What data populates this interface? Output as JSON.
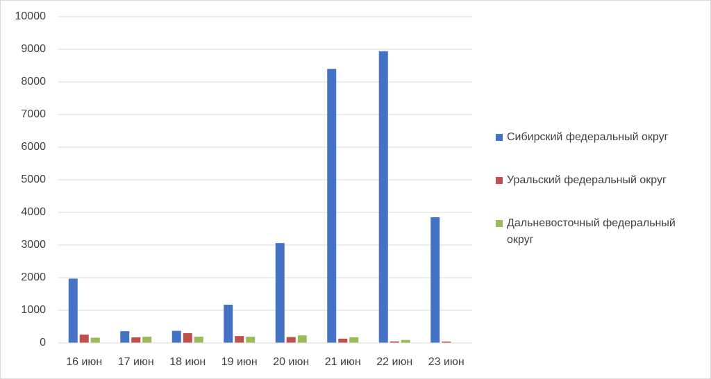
{
  "chart_data": {
    "type": "bar",
    "categories": [
      "16 июн",
      "17 июн",
      "18 июн",
      "19 июн",
      "20 июн",
      "21 июн",
      "22 июн",
      "23 июн"
    ],
    "series": [
      {
        "name": "Сибирский федеральный округ",
        "color": "#4472c4",
        "values": [
          1970,
          360,
          370,
          1170,
          3060,
          8400,
          8940,
          3850
        ]
      },
      {
        "name": "Уральский федеральный округ",
        "color": "#c0504d",
        "values": [
          255,
          170,
          300,
          210,
          180,
          130,
          45,
          40
        ]
      },
      {
        "name": "Дальневосточный федеральный округ",
        "color": "#9bbb59",
        "values": [
          160,
          190,
          190,
          190,
          230,
          170,
          90,
          0
        ]
      }
    ],
    "ylim": [
      0,
      10000
    ],
    "yticks": [
      0,
      1000,
      2000,
      3000,
      4000,
      5000,
      6000,
      7000,
      8000,
      9000,
      10000
    ],
    "grid": true,
    "legend": "right"
  }
}
